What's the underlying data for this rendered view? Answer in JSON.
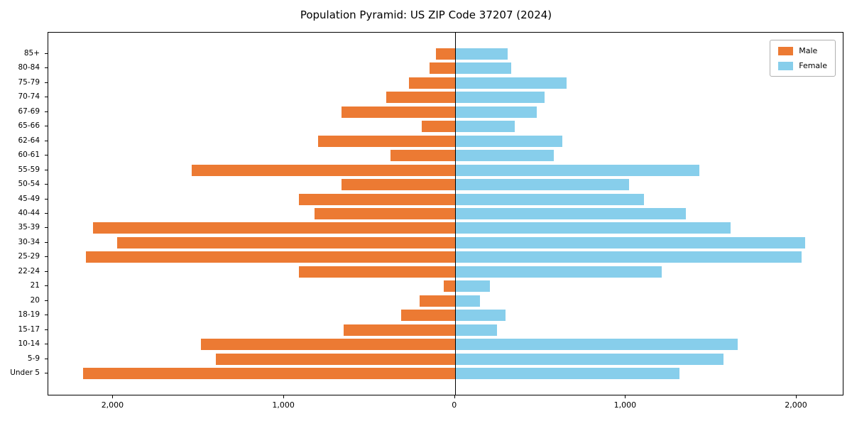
{
  "chart_data": {
    "type": "bar",
    "orientation": "horizontal-pyramid",
    "title": "Population Pyramid: US ZIP Code 37207 (2024)",
    "categories": [
      "85+",
      "80-84",
      "75-79",
      "70-74",
      "67-69",
      "65-66",
      "62-64",
      "60-61",
      "55-59",
      "50-54",
      "45-49",
      "40-44",
      "35-39",
      "30-34",
      "25-29",
      "22-24",
      "21",
      "20",
      "18-19",
      "15-17",
      "10-14",
      "5-9",
      "Under 5"
    ],
    "series": [
      {
        "name": "Male",
        "side": "left",
        "color": "#ec7a33",
        "values": [
          110,
          150,
          270,
          400,
          665,
          195,
          800,
          375,
          1540,
          665,
          915,
          820,
          2120,
          1975,
          2160,
          915,
          65,
          205,
          315,
          650,
          1485,
          1400,
          2175
        ]
      },
      {
        "name": "Female",
        "side": "right",
        "color": "#87ceeb",
        "values": [
          310,
          330,
          655,
          525,
          480,
          350,
          630,
          580,
          1430,
          1020,
          1105,
          1350,
          1615,
          2050,
          2030,
          1210,
          205,
          145,
          295,
          245,
          1655,
          1570,
          1315
        ]
      }
    ],
    "x_ticks": {
      "values": [
        -2000,
        -1000,
        0,
        1000,
        2000
      ],
      "labels": [
        "2,000",
        "1,000",
        "0",
        "1,000",
        "2,000"
      ]
    },
    "xlim": [
      -2380,
      2270
    ],
    "legend_position": "upper right",
    "grid": false
  }
}
